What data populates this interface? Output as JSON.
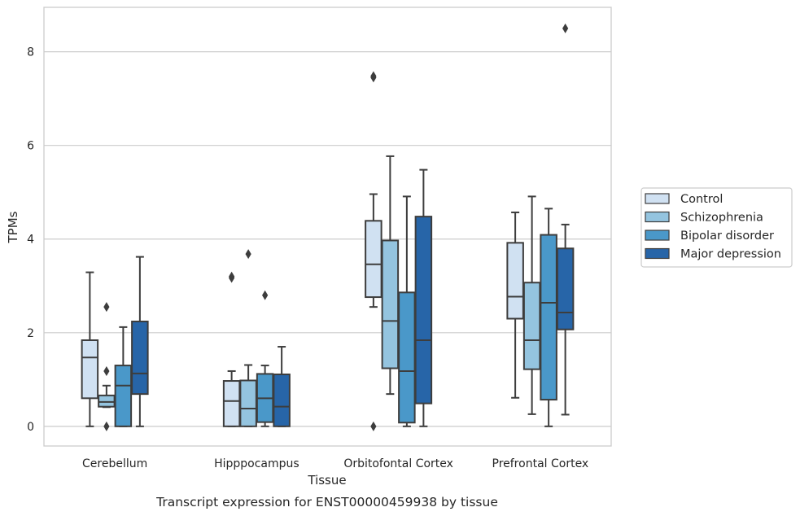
{
  "caption": "Transcript expression for ENST00000459938 by tissue",
  "chart_data": {
    "type": "box",
    "xlabel": "Tissue",
    "ylabel": "TPMs",
    "ylim": [
      -0.42,
      8.95
    ],
    "yticks": [
      0,
      2,
      4,
      6,
      8
    ],
    "grid": true,
    "legend_position": "right",
    "categories": [
      "Cerebellum",
      "Hipppocampus",
      "Orbitofontal Cortex",
      "Prefrontal Cortex"
    ],
    "series": [
      {
        "name": "Control",
        "color": "#d0e1f2",
        "boxes": [
          {
            "whisker_low": 0.0,
            "q1": 0.6,
            "median": 1.47,
            "q3": 1.84,
            "whisker_high": 3.29,
            "outliers": []
          },
          {
            "whisker_low": 0.0,
            "q1": 0.0,
            "median": 0.54,
            "q3": 0.97,
            "whisker_high": 1.18,
            "outliers": [
              3.17,
              3.2
            ]
          },
          {
            "whisker_low": 2.55,
            "q1": 2.76,
            "median": 3.46,
            "q3": 4.39,
            "whisker_high": 4.96,
            "outliers": [
              7.45,
              7.48,
              0.0
            ]
          },
          {
            "whisker_low": 0.61,
            "q1": 2.3,
            "median": 2.77,
            "q3": 3.92,
            "whisker_high": 4.57,
            "outliers": []
          }
        ]
      },
      {
        "name": "Schizophrenia",
        "color": "#94c4df",
        "boxes": [
          {
            "whisker_low": 0.41,
            "q1": 0.42,
            "median": 0.52,
            "q3": 0.66,
            "whisker_high": 0.87,
            "outliers": [
              2.55,
              1.18,
              0.0
            ]
          },
          {
            "whisker_low": 0.0,
            "q1": 0.0,
            "median": 0.38,
            "q3": 0.98,
            "whisker_high": 1.31,
            "outliers": [
              3.68
            ]
          },
          {
            "whisker_low": 0.69,
            "q1": 1.24,
            "median": 2.25,
            "q3": 3.97,
            "whisker_high": 5.77,
            "outliers": []
          },
          {
            "whisker_low": 0.26,
            "q1": 1.22,
            "median": 1.84,
            "q3": 3.07,
            "whisker_high": 4.91,
            "outliers": []
          }
        ]
      },
      {
        "name": "Bipolar disorder",
        "color": "#4a98c9",
        "boxes": [
          {
            "whisker_low": 0.0,
            "q1": 0.0,
            "median": 0.87,
            "q3": 1.3,
            "whisker_high": 2.12,
            "outliers": []
          },
          {
            "whisker_low": 0.0,
            "q1": 0.09,
            "median": 0.6,
            "q3": 1.12,
            "whisker_high": 1.3,
            "outliers": [
              2.8
            ]
          },
          {
            "whisker_low": 0.0,
            "q1": 0.08,
            "median": 1.18,
            "q3": 2.86,
            "whisker_high": 4.91,
            "outliers": []
          },
          {
            "whisker_low": 0.0,
            "q1": 0.57,
            "median": 2.64,
            "q3": 4.09,
            "whisker_high": 4.65,
            "outliers": []
          }
        ]
      },
      {
        "name": "Major depression",
        "color": "#2765a8",
        "boxes": [
          {
            "whisker_low": 0.0,
            "q1": 0.69,
            "median": 1.13,
            "q3": 2.24,
            "whisker_high": 3.62,
            "outliers": []
          },
          {
            "whisker_low": 0.0,
            "q1": 0.0,
            "median": 0.42,
            "q3": 1.11,
            "whisker_high": 1.7,
            "outliers": []
          },
          {
            "whisker_low": 0.0,
            "q1": 0.49,
            "median": 1.84,
            "q3": 4.48,
            "whisker_high": 5.48,
            "outliers": []
          },
          {
            "whisker_low": 0.25,
            "q1": 2.07,
            "median": 2.43,
            "q3": 3.8,
            "whisker_high": 4.31,
            "outliers": [
              8.5
            ]
          }
        ]
      }
    ]
  }
}
